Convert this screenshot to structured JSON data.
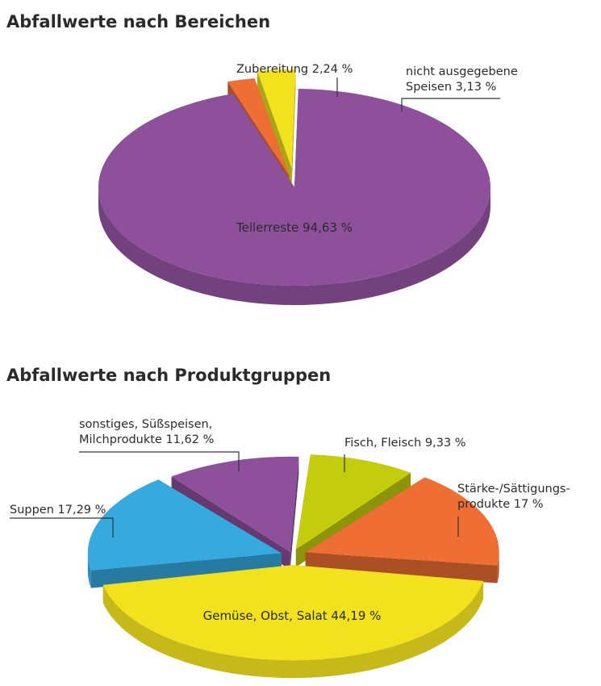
{
  "chart_data": [
    {
      "type": "pie",
      "title": "Abfallwerte nach Bereichen",
      "slices": [
        {
          "key": "tellerreste",
          "label": "Tellerreste 94,63 %",
          "value": 94.63,
          "color": "#8e4f9b"
        },
        {
          "key": "zubereitung",
          "label": "Zubereitung 2,24 %",
          "value": 2.24,
          "color": "#ee6e34"
        },
        {
          "key": "speisen",
          "label_lines": [
            "nicht ausgegebene",
            "Speisen 3,13 %"
          ],
          "value": 3.13,
          "color": "#f2e21e"
        }
      ]
    },
    {
      "type": "pie",
      "title": "Abfallwerte nach Produktgruppen",
      "slices": [
        {
          "key": "fisch",
          "label": "Fisch, Fleisch 9,33 %",
          "value": 9.33,
          "color": "#c4cc0e"
        },
        {
          "key": "staerke",
          "label_lines": [
            "Stärke-/Sättigungs-",
            "produkte 17 %"
          ],
          "value": 17,
          "color": "#ee6e34"
        },
        {
          "key": "gemuese",
          "label": "Gemüse, Obst, Salat 44,19 %",
          "value": 44.19,
          "color": "#f2e21e"
        },
        {
          "key": "suppen",
          "label": "Suppen 17,29 %",
          "value": 17.29,
          "color": "#36a9df"
        },
        {
          "key": "sonstiges",
          "label_lines": [
            "sonstiges, Süßspeisen,",
            "Milchprodukte 11,62 %"
          ],
          "value": 11.62,
          "color": "#8e4f9b"
        }
      ]
    }
  ]
}
